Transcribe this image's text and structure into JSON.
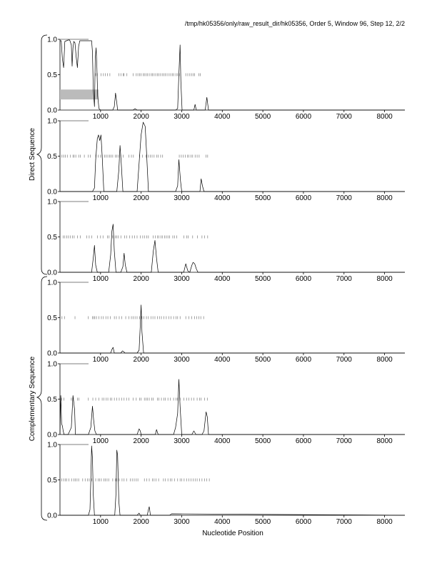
{
  "header": "/tmp/hk05356/only/raw_result_dir/hk05356, Order 5, Window 96, Step 12, 2/2",
  "xlabel": "Nucleotide Position",
  "group_labels": [
    "Direct Sequence",
    "Complementary Sequence"
  ],
  "colors": {
    "line": "#000000",
    "frame": "#000000",
    "tick_mark": "#666666",
    "bar": "#bbbbbb"
  },
  "chart_data": [
    {
      "type": "line",
      "xlim": [
        0,
        8500
      ],
      "ylim": [
        0,
        1
      ],
      "xticks": [
        1000,
        2000,
        3000,
        4000,
        5000,
        6000,
        7000,
        8000
      ],
      "yticks": [
        0.0,
        0.5,
        1.0
      ],
      "grid": false,
      "hbars": [
        {
          "x0": 0,
          "x1": 950,
          "y0": 0.15,
          "y1": 0.29
        }
      ],
      "marks_y": 0.5,
      "marks": [
        880,
        920,
        1010,
        1070,
        1120,
        1170,
        1230,
        1450,
        1500,
        1560,
        1580,
        1650,
        1800,
        1880,
        1920,
        1960,
        2000,
        2050,
        2080,
        2120,
        2160,
        2200,
        2250,
        2280,
        2320,
        2360,
        2400,
        2440,
        2480,
        2520,
        2560,
        2600,
        2640,
        2690,
        2730,
        2770,
        2810,
        2860,
        2900,
        2940,
        3100,
        3150,
        3200,
        3240,
        3280,
        3320,
        3420,
        3460
      ],
      "series": [
        {
          "x": [
            0,
            30,
            60,
            90,
            120,
            160,
            200,
            240,
            280,
            300,
            320,
            340,
            370,
            400,
            430,
            460,
            490,
            520,
            540,
            560,
            600,
            650,
            700,
            740,
            780,
            800,
            820,
            850,
            870,
            890,
            910,
            930,
            960,
            1000,
            1200,
            1300,
            1340,
            1370,
            1400,
            1420,
            1450,
            1500,
            1600,
            1800,
            1850,
            1900,
            2000,
            2500,
            2850,
            2900,
            2930,
            2960,
            2980,
            3010,
            3050,
            3100,
            3300,
            3330,
            3360,
            3390,
            3500,
            3580,
            3620,
            3660,
            3700,
            4000,
            8500
          ],
          "y": [
            0.98,
            0.98,
            0.72,
            0.6,
            0.97,
            0.98,
            0.99,
            0.99,
            0.92,
            0.62,
            0.88,
            0.97,
            0.95,
            0.75,
            0.6,
            0.9,
            0.98,
            0.98,
            0.98,
            0.98,
            0.98,
            0.98,
            0.98,
            0.98,
            0.98,
            0.82,
            0.3,
            0.05,
            0.72,
            0.88,
            0.6,
            0.2,
            0.02,
            0.0,
            0.0,
            0.0,
            0.05,
            0.24,
            0.1,
            0.0,
            0.0,
            0.0,
            0.0,
            0.0,
            0.02,
            0.0,
            0.0,
            0.0,
            0.0,
            0.02,
            0.5,
            0.92,
            0.4,
            0.0,
            0.0,
            0.0,
            0.0,
            0.08,
            0.0,
            0.0,
            0.0,
            0.0,
            0.18,
            0.0,
            0.0,
            0.0,
            0.0
          ]
        }
      ]
    },
    {
      "type": "line",
      "xlim": [
        0,
        8500
      ],
      "ylim": [
        0,
        1
      ],
      "xticks": [
        1000,
        2000,
        3000,
        4000,
        5000,
        6000,
        7000,
        8000
      ],
      "yticks": [
        0.0,
        0.5,
        1.0
      ],
      "grid": false,
      "hbars": [],
      "marks_y": 0.5,
      "marks": [
        50,
        90,
        130,
        180,
        260,
        320,
        350,
        390,
        460,
        500,
        600,
        700,
        750,
        880,
        940,
        1000,
        1040,
        1100,
        1140,
        1180,
        1220,
        1260,
        1300,
        1360,
        1400,
        1440,
        1500,
        1560,
        1700,
        1760,
        1810,
        1960,
        2030,
        2120,
        2180,
        2230,
        2270,
        2320,
        2380,
        2420,
        2480,
        2530,
        2940,
        2990,
        3040,
        3090,
        3140,
        3180,
        3230,
        3270,
        3330,
        3380,
        3430,
        3600,
        3640
      ],
      "series": [
        {
          "x": [
            0,
            800,
            850,
            880,
            920,
            950,
            980,
            1010,
            1040,
            1080,
            1200,
            1400,
            1450,
            1480,
            1510,
            1550,
            1600,
            1900,
            1950,
            2000,
            2050,
            2100,
            2130,
            2180,
            2500,
            2850,
            2900,
            2930,
            2970,
            3000,
            3300,
            3450,
            3480,
            3510,
            3550,
            4000,
            8500
          ],
          "y": [
            0.0,
            0.0,
            0.05,
            0.45,
            0.75,
            0.8,
            0.72,
            0.8,
            0.5,
            0.0,
            0.0,
            0.0,
            0.3,
            0.65,
            0.4,
            0.0,
            0.0,
            0.0,
            0.4,
            0.8,
            0.98,
            0.92,
            0.6,
            0.0,
            0.0,
            0.0,
            0.08,
            0.45,
            0.15,
            0.0,
            0.0,
            0.0,
            0.18,
            0.08,
            0.0,
            0.0,
            0.0
          ]
        }
      ]
    },
    {
      "type": "line",
      "xlim": [
        0,
        8500
      ],
      "ylim": [
        0,
        1
      ],
      "xticks": [
        1000,
        2000,
        3000,
        4000,
        5000,
        6000,
        7000,
        8000
      ],
      "yticks": [
        0.0,
        0.5,
        1.0
      ],
      "grid": false,
      "hbars": [],
      "marks_y": 0.5,
      "marks": [
        80,
        120,
        170,
        210,
        260,
        310,
        350,
        430,
        500,
        660,
        720,
        780,
        920,
        1000,
        1060,
        1170,
        1210,
        1300,
        1360,
        1400,
        1440,
        1500,
        1590,
        1640,
        1720,
        1780,
        1840,
        1900,
        1980,
        2040,
        2090,
        2140,
        2180,
        2300,
        2350,
        2400,
        2440,
        2490,
        2530,
        2580,
        2620,
        2660,
        2700,
        2780,
        2820,
        2880,
        3050,
        3120,
        3160,
        3270,
        3390,
        3500,
        3560,
        3640
      ],
      "series": [
        {
          "x": [
            0,
            780,
            820,
            850,
            880,
            920,
            1200,
            1250,
            1280,
            1310,
            1340,
            1380,
            1500,
            1550,
            1580,
            1610,
            1650,
            2250,
            2300,
            2340,
            2380,
            2420,
            3050,
            3100,
            3150,
            3200,
            3250,
            3280,
            3320,
            3360,
            3400,
            8500
          ],
          "y": [
            0.0,
            0.0,
            0.2,
            0.38,
            0.1,
            0.0,
            0.0,
            0.25,
            0.58,
            0.68,
            0.3,
            0.0,
            0.0,
            0.08,
            0.27,
            0.1,
            0.0,
            0.0,
            0.3,
            0.45,
            0.2,
            0.0,
            0.0,
            0.12,
            0.02,
            0.0,
            0.1,
            0.14,
            0.12,
            0.05,
            0.0,
            0.0
          ]
        }
      ]
    },
    {
      "type": "line",
      "xlim": [
        0,
        8500
      ],
      "ylim": [
        0,
        1
      ],
      "xticks": [
        1000,
        2000,
        3000,
        4000,
        5000,
        6000,
        7000,
        8000
      ],
      "yticks": [
        0.0,
        0.5,
        1.0
      ],
      "grid": false,
      "hbars": [],
      "marks_y": 0.5,
      "marks": [
        50,
        110,
        370,
        700,
        800,
        830,
        860,
        900,
        960,
        1020,
        1070,
        1130,
        1180,
        1240,
        1340,
        1390,
        1460,
        1520,
        1620,
        1700,
        1760,
        1800,
        1850,
        1900,
        1960,
        2020,
        2070,
        2130,
        2180,
        2240,
        2290,
        2340,
        2400,
        2450,
        2500,
        2560,
        2620,
        2680,
        2740,
        2800,
        2860,
        2900,
        2960,
        3100,
        3180,
        3250,
        3320,
        3370,
        3420,
        3470,
        3540
      ],
      "series": [
        {
          "x": [
            0,
            1250,
            1280,
            1310,
            1340,
            1500,
            1540,
            1570,
            1600,
            1900,
            1950,
            1980,
            2000,
            2020,
            2060,
            8500
          ],
          "y": [
            0.0,
            0.0,
            0.05,
            0.08,
            0.0,
            0.0,
            0.03,
            0.02,
            0.0,
            0.0,
            0.04,
            0.4,
            0.68,
            0.3,
            0.0,
            0.0
          ]
        }
      ]
    },
    {
      "type": "line",
      "xlim": [
        0,
        8500
      ],
      "ylim": [
        0,
        1
      ],
      "xticks": [
        1000,
        2000,
        3000,
        4000,
        5000,
        6000,
        7000,
        8000
      ],
      "yticks": [
        0.0,
        0.5,
        1.0
      ],
      "grid": false,
      "hbars": [],
      "marks_y": 0.5,
      "marks": [
        10,
        40,
        100,
        280,
        330,
        430,
        470,
        700,
        810,
        880,
        960,
        1040,
        1080,
        1140,
        1180,
        1240,
        1280,
        1340,
        1400,
        1460,
        1520,
        1580,
        1640,
        1700,
        1800,
        1880,
        1960,
        2000,
        2080,
        2120,
        2160,
        2200,
        2260,
        2300,
        2400,
        2440,
        2500,
        2560,
        2600,
        2660,
        2720,
        2800,
        2860,
        2900,
        2960,
        3050,
        3120,
        3180,
        3240,
        3300,
        3380,
        3440,
        3480,
        3560,
        3630
      ],
      "series": [
        {
          "x": [
            0,
            20,
            40,
            60,
            80,
            100,
            200,
            280,
            320,
            360,
            380,
            700,
            760,
            800,
            830,
            860,
            900,
            1900,
            1950,
            1980,
            2000,
            2350,
            2380,
            2420,
            2800,
            2850,
            2900,
            2930,
            2960,
            3000,
            3250,
            3300,
            3350,
            3500,
            3550,
            3600,
            3630,
            3660,
            4000,
            8500
          ],
          "y": [
            0.0,
            0.55,
            0.15,
            0.12,
            0.05,
            0.0,
            0.0,
            0.1,
            0.55,
            0.35,
            0.0,
            0.0,
            0.1,
            0.4,
            0.2,
            0.05,
            0.0,
            0.0,
            0.08,
            0.05,
            0.0,
            0.0,
            0.07,
            0.0,
            0.0,
            0.1,
            0.3,
            0.78,
            0.4,
            0.0,
            0.0,
            0.05,
            0.0,
            0.0,
            0.05,
            0.32,
            0.25,
            0.0,
            0.0,
            0.0
          ]
        }
      ]
    },
    {
      "type": "line",
      "xlim": [
        0,
        8500
      ],
      "ylim": [
        0,
        1
      ],
      "xticks": [
        1000,
        2000,
        3000,
        4000,
        5000,
        6000,
        7000,
        8000
      ],
      "yticks": [
        0.0,
        0.5,
        1.0
      ],
      "grid": false,
      "hbars": [],
      "marks_y": 0.5,
      "marks": [
        40,
        90,
        130,
        170,
        220,
        290,
        340,
        380,
        420,
        460,
        560,
        620,
        680,
        720,
        780,
        880,
        940,
        980,
        1020,
        1080,
        1120,
        1160,
        1200,
        1300,
        1360,
        1400,
        1460,
        1530,
        1580,
        1640,
        1730,
        1780,
        1830,
        1880,
        1920,
        2080,
        2140,
        2200,
        2280,
        2320,
        2370,
        2430,
        2550,
        2600,
        2660,
        2720,
        2760,
        2820,
        2900,
        2960,
        3000,
        3060,
        3120,
        3180,
        3230,
        3280,
        3330,
        3380,
        3440,
        3500,
        3560,
        3620,
        3680
      ],
      "series": [
        {
          "x": [
            0,
            700,
            740,
            760,
            780,
            800,
            820,
            850,
            1350,
            1380,
            1400,
            1420,
            1450,
            1480,
            1900,
            1950,
            1980,
            2150,
            2180,
            2200,
            2230,
            2700,
            2750,
            8500
          ],
          "y": [
            0.0,
            0.0,
            0.08,
            0.5,
            0.98,
            0.8,
            0.3,
            0.0,
            0.0,
            0.3,
            0.92,
            0.85,
            0.2,
            0.0,
            0.0,
            0.03,
            0.0,
            0.0,
            0.08,
            0.12,
            0.0,
            0.0,
            0.02,
            0.0
          ]
        }
      ]
    }
  ]
}
